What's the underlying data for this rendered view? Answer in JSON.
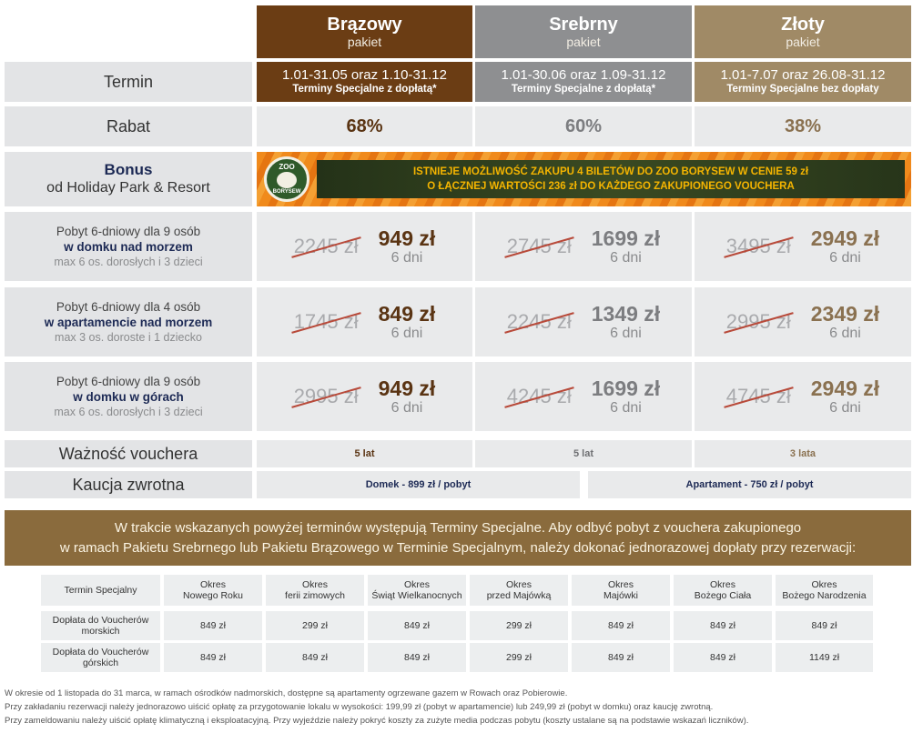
{
  "packages": [
    {
      "title": "Brązowy",
      "subtitle": "pakiet",
      "term_main": "1.01-31.05 oraz 1.10-31.12",
      "term_sub": "Terminy Specjalne z dopłatą*",
      "discount": "68%",
      "validity": "5 lat",
      "color": "#6b3d14",
      "accent": "#6b3d14"
    },
    {
      "title": "Srebrny",
      "subtitle": "pakiet",
      "term_main": "1.01-30.06 oraz 1.09-31.12",
      "term_sub": "Terminy Specjalne z dopłatą*",
      "discount": "60%",
      "validity": "5 lat",
      "color": "#8e8f91",
      "accent": "#8e8f91"
    },
    {
      "title": "Złoty",
      "subtitle": "pakiet",
      "term_main": "1.01-7.07 oraz 26.08-31.12",
      "term_sub": "Terminy Specjalne bez dopłaty",
      "discount": "38%",
      "validity": "3 lata",
      "color": "#a08a66",
      "accent": "#a08a66"
    }
  ],
  "labels": {
    "term": "Termin",
    "discount": "Rabat",
    "bonus_title": "Bonus",
    "bonus_sub": "od Holiday Park & Resort",
    "validity": "Ważność vouchera",
    "deposit": "Kaucja zwrotna"
  },
  "zoo": {
    "logo_top": "ZOO",
    "logo_bottom": "BORYSEW",
    "line1": "ISTNIEJE MOŻLIWOŚĆ ZAKUPU 4 BILETÓW DO ZOO BORYSEW W CENIE 59 zł",
    "line2": "O ŁĄCZNEJ WARTOŚCI 236 zł DO KAŻDEGO ZAKUPIONEGO VOUCHERA"
  },
  "stays": [
    {
      "line1": "Pobyt 6-dniowy dla 9 osób",
      "line2": "w domku nad morzem",
      "line3": "max 6 os. dorosłych i 3 dzieci",
      "prices": [
        {
          "old": "2245 zł",
          "new": "949 zł",
          "days": "6 dni"
        },
        {
          "old": "2745 zł",
          "new": "1699 zł",
          "days": "6 dni"
        },
        {
          "old": "3495 zł",
          "new": "2949 zł",
          "days": "6 dni"
        }
      ]
    },
    {
      "line1": "Pobyt 6-dniowy dla 4 osób",
      "line2": "w apartamencie nad morzem",
      "line3": "max 3 os. doroste i 1 dziecko",
      "prices": [
        {
          "old": "1745 zł",
          "new": "849 zł",
          "days": "6 dni"
        },
        {
          "old": "2245 zł",
          "new": "1349 zł",
          "days": "6 dni"
        },
        {
          "old": "2995 zł",
          "new": "2349 zł",
          "days": "6 dni"
        }
      ]
    },
    {
      "line1": "Pobyt 6-dniowy dla 9 osób",
      "line2": "w domku w górach",
      "line3": "max 6 os. dorosłych i 3 dzieci",
      "prices": [
        {
          "old": "2995 zł",
          "new": "949 zł",
          "days": "6 dni"
        },
        {
          "old": "4245 zł",
          "new": "1699 zł",
          "days": "6 dni"
        },
        {
          "old": "4745 zł",
          "new": "2949 zł",
          "days": "6 dni"
        }
      ]
    }
  ],
  "deposit": {
    "house": "Domek - 899 zł / pobyt",
    "apartment": "Apartament - 750 zł / pobyt"
  },
  "banner": {
    "line1": "W trakcie wskazanych powyżej terminów występują Terminy Specjalne. Aby odbyć pobyt z vouchera zakupionego",
    "line2": "w ramach Pakietu Srebrnego lub Pakietu Brązowego w Terminie Specjalnym, należy dokonać jednorazowej dopłaty przy rezerwacji:"
  },
  "special_table": {
    "headers": [
      "Termin Specjalny",
      "Okres\nNowego Roku",
      "Okres\nferii zimowych",
      "Okres\nŚwiąt Wielkanocnych",
      "Okres\nprzed Majówką",
      "Okres\nMajówki",
      "Okres\nBożego Ciała",
      "Okres\nBożego Narodzenia"
    ],
    "rows": [
      [
        "Dopłata do Voucherów\nmorskich",
        "849 zł",
        "299 zł",
        "849 zł",
        "299 zł",
        "849 zł",
        "849 zł",
        "849 zł"
      ],
      [
        "Dopłata do Voucherów\ngórskich",
        "849 zł",
        "849 zł",
        "849 zł",
        "299 zł",
        "849 zł",
        "849 zł",
        "1149 zł"
      ]
    ]
  },
  "footnotes": [
    "W okresie od 1 listopada do 31 marca, w ramach ośrodków nadmorskich, dostępne są apartamenty ogrzewane gazem w Rowach oraz Pobierowie.",
    "Przy zakładaniu rezerwacji należy jednorazowo uiścić opłatę za przygotowanie lokalu w wysokości: 199,99 zł (pobyt w apartamencie) lub 249,99 zł (pobyt w domku) oraz kaucję zwrotną.",
    "Przy zameldowaniu należy uiścić opłatę klimatyczną i eksploatacyjną. Przy wyjeździe należy pokryć koszty za zużyte media podczas pobytu (koszty ustalane są na podstawie wskazań liczników)."
  ]
}
